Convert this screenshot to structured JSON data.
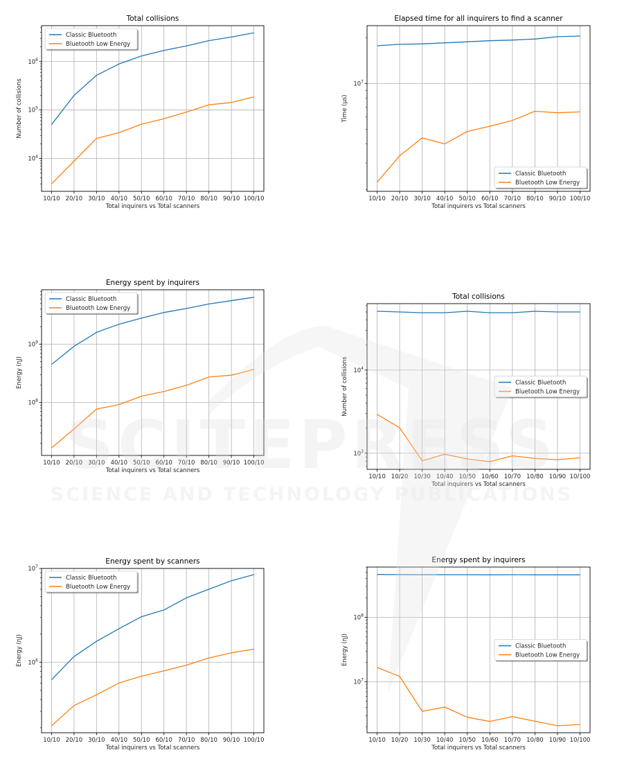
{
  "watermark": {
    "logo": "SCITEPRESS",
    "tagline": "SCIENCE AND TECHNOLOGY PUBLICATIONS"
  },
  "chart_data": [
    {
      "type": "line",
      "title": "Total collisions",
      "xlabel": "Total inquirers vs Total scanners",
      "ylabel": "Number of collisions",
      "yscale": "log",
      "ylim": [
        2100,
        5500000
      ],
      "grid": true,
      "legend": "top-left",
      "categories": [
        "10/10",
        "20/10",
        "30/10",
        "40/10",
        "50/10",
        "60/10",
        "70/10",
        "80/10",
        "90/10",
        "100/10"
      ],
      "series": [
        {
          "name": "Classic Bluetooth",
          "color": "#1f77b4",
          "values": [
            50000,
            200000,
            520000,
            890000,
            1300000,
            1700000,
            2100000,
            2700000,
            3200000,
            3900000
          ]
        },
        {
          "name": "Bluetooth Low Energy",
          "color": "#ff7f0e",
          "values": [
            3000,
            8800,
            26000,
            34000,
            51000,
            66000,
            91000,
            128000,
            143000,
            187000
          ]
        }
      ]
    },
    {
      "type": "line",
      "title": "Elapsed time for all inquirers to find a scanner",
      "xlabel": "Total inquirers vs Total scanners",
      "ylabel": "Time (µs)",
      "yscale": "log",
      "ylim": [
        1950000,
        24000000
      ],
      "grid": true,
      "legend": "bottom-right",
      "categories": [
        "10/10",
        "20/10",
        "30/10",
        "40/10",
        "50/10",
        "60/10",
        "70/10",
        "80/10",
        "90/10",
        "100/10"
      ],
      "series": [
        {
          "name": "Classic Bluetooth",
          "color": "#1f77b4",
          "values": [
            17700000,
            18100000,
            18200000,
            18500000,
            18800000,
            19100000,
            19300000,
            19600000,
            20300000,
            20500000
          ]
        },
        {
          "name": "Bluetooth Low Energy",
          "color": "#ff7f0e",
          "values": [
            2240000,
            3340000,
            4380000,
            4000000,
            4830000,
            5230000,
            5710000,
            6560000,
            6410000,
            6500000
          ]
        }
      ]
    },
    {
      "type": "line",
      "title": "Energy spent by inquirers",
      "xlabel": "Total inquirers vs Total scanners",
      "ylabel": "Energy (ηJ)",
      "yscale": "log",
      "ylim": [
        12300000,
        8600000000
      ],
      "grid": true,
      "legend": "top-left",
      "categories": [
        "10/10",
        "20/10",
        "30/10",
        "40/10",
        "50/10",
        "60/10",
        "70/10",
        "80/10",
        "90/10",
        "100/10"
      ],
      "series": [
        {
          "name": "Classic Bluetooth",
          "color": "#1f77b4",
          "values": [
            450000000,
            920000000,
            1600000000,
            2200000000,
            2800000000,
            3500000000,
            4100000000,
            4900000000,
            5600000000,
            6400000000
          ]
        },
        {
          "name": "Bluetooth Low Energy",
          "color": "#ff7f0e",
          "values": [
            16600000,
            35000000,
            77000000,
            92000000,
            128000000,
            154000000,
            197000000,
            273000000,
            294000000,
            369000000
          ]
        }
      ]
    },
    {
      "type": "line",
      "title": "Total collisions",
      "xlabel": "Total inquirers vs Total scanners",
      "ylabel": "Number of collisions",
      "yscale": "log",
      "ylim": [
        640,
        63000
      ],
      "grid": true,
      "legend": "center-right",
      "categories": [
        "10/10",
        "10/20",
        "10/30",
        "10/40",
        "10/50",
        "10/60",
        "10/70",
        "10/80",
        "10/90",
        "10/100"
      ],
      "series": [
        {
          "name": "Classic Bluetooth",
          "color": "#1f77b4",
          "values": [
            51000,
            50000,
            49000,
            49000,
            51000,
            49000,
            49000,
            51000,
            50000,
            50000
          ]
        },
        {
          "name": "Bluetooth Low Energy",
          "color": "#ff7f0e",
          "values": [
            2930,
            2030,
            810,
            970,
            853,
            790,
            930,
            863,
            836,
            880
          ]
        }
      ]
    },
    {
      "type": "line",
      "title": "Energy spent by scanners",
      "xlabel": "Total inquirers vs Total scanners",
      "ylabel": "Energy (ηJ)",
      "yscale": "log",
      "ylim": [
        177000,
        10000000
      ],
      "grid": true,
      "legend": "top-left",
      "categories": [
        "10/10",
        "20/10",
        "30/10",
        "40/10",
        "50/10",
        "60/10",
        "70/10",
        "80/10",
        "90/10",
        "100/10"
      ],
      "series": [
        {
          "name": "Classic Bluetooth",
          "color": "#1f77b4",
          "values": [
            650000,
            1150000,
            1670000,
            2280000,
            3060000,
            3610000,
            4860000,
            6000000,
            7400000,
            8600000
          ]
        },
        {
          "name": "Bluetooth Low Energy",
          "color": "#ff7f0e",
          "values": [
            210000,
            345000,
            450000,
            600000,
            710000,
            810000,
            930000,
            1110000,
            1260000,
            1380000
          ]
        }
      ]
    },
    {
      "type": "line",
      "title": "Energy spent by inquirers",
      "xlabel": "Total inquirers vs Total scanners",
      "ylabel": "Energy (ηJ)",
      "yscale": "log",
      "ylim": [
        1630000,
        600000000
      ],
      "grid": true,
      "legend": "center-right",
      "categories": [
        "10/10",
        "10/20",
        "10/30",
        "10/40",
        "10/50",
        "10/60",
        "10/70",
        "10/80",
        "10/90",
        "10/100"
      ],
      "series": [
        {
          "name": "Classic Bluetooth",
          "color": "#1f77b4",
          "values": [
            460000000,
            458000000,
            457000000,
            457000000,
            457000000,
            455000000,
            457000000,
            455000000,
            455000000,
            455000000
          ]
        },
        {
          "name": "Bluetooth Low Energy",
          "color": "#ff7f0e",
          "values": [
            16700000,
            12200000,
            3500000,
            4070000,
            2830000,
            2440000,
            2900000,
            2460000,
            2090000,
            2190000
          ]
        }
      ]
    }
  ]
}
